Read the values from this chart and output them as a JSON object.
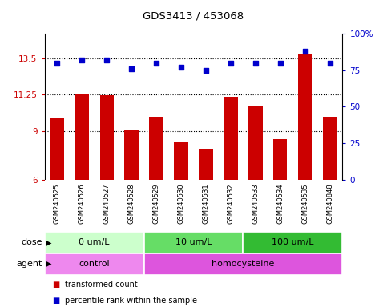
{
  "title": "GDS3413 / 453068",
  "samples": [
    "GSM240525",
    "GSM240526",
    "GSM240527",
    "GSM240528",
    "GSM240529",
    "GSM240530",
    "GSM240531",
    "GSM240532",
    "GSM240533",
    "GSM240534",
    "GSM240535",
    "GSM240848"
  ],
  "bar_values": [
    9.8,
    11.25,
    11.2,
    9.05,
    9.9,
    8.35,
    7.9,
    11.1,
    10.5,
    8.5,
    13.8,
    9.9
  ],
  "scatter_values": [
    80,
    82,
    82,
    76,
    80,
    77,
    75,
    80,
    80,
    80,
    88,
    80
  ],
  "bar_color": "#cc0000",
  "scatter_color": "#0000cc",
  "ylim_left": [
    6,
    15
  ],
  "ylim_right": [
    0,
    100
  ],
  "yticks_left": [
    6,
    9,
    11.25,
    13.5
  ],
  "yticks_right": [
    0,
    25,
    50,
    75,
    100
  ],
  "ytick_labels_left": [
    "6",
    "9",
    "11.25",
    "13.5"
  ],
  "ytick_labels_right": [
    "0",
    "25",
    "50",
    "75",
    "100%"
  ],
  "hlines": [
    13.5,
    11.25,
    9.0
  ],
  "dose_groups": [
    {
      "label": "0 um/L",
      "start": 0,
      "end": 4,
      "color": "#ccffcc"
    },
    {
      "label": "10 um/L",
      "start": 4,
      "end": 8,
      "color": "#66dd66"
    },
    {
      "label": "100 um/L",
      "start": 8,
      "end": 12,
      "color": "#33bb33"
    }
  ],
  "agent_groups": [
    {
      "label": "control",
      "start": 0,
      "end": 4,
      "color": "#ee88ee"
    },
    {
      "label": "homocysteine",
      "start": 4,
      "end": 12,
      "color": "#dd55dd"
    }
  ],
  "legend_items": [
    {
      "label": "transformed count",
      "color": "#cc0000"
    },
    {
      "label": "percentile rank within the sample",
      "color": "#0000cc"
    }
  ],
  "dose_label": "dose",
  "agent_label": "agent",
  "bg_color": "#ffffff",
  "label_area_color": "#cccccc"
}
